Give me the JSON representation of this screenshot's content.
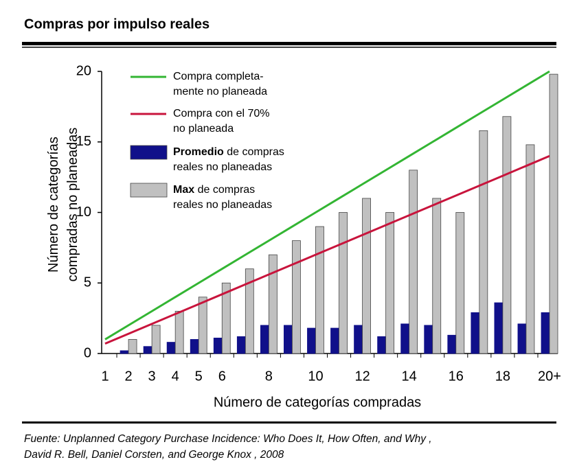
{
  "title": "Compras por impulso reales",
  "source": "Fuente:  Unplanned Category Purchase Incidence:  Who Does It, How Often, and Why ,\nDavid R. Bell, Daniel Corsten, and George Knox , 2008",
  "chart_data": {
    "type": "bar",
    "x_label": "Número de categorías compradas",
    "y_label": "Número de categorías\ncompradas no planeadas",
    "categories": [
      "1",
      "2",
      "3",
      "4",
      "5",
      "6",
      null,
      "8",
      null,
      "10",
      null,
      "12",
      null,
      "14",
      null,
      "16",
      null,
      "18",
      null,
      "20+"
    ],
    "series": [
      {
        "name": "Compra completa-\nmente no planeada",
        "type": "line",
        "color": "#33b533",
        "values": [
          1,
          2,
          3,
          4,
          5,
          6,
          7,
          8,
          9,
          10,
          11,
          12,
          13,
          14,
          15,
          16,
          17,
          18,
          19,
          20
        ]
      },
      {
        "name": "Compra con el 70%\nno planeada",
        "type": "line",
        "color": "#c8143c",
        "values": [
          0.7,
          1.4,
          2.1,
          2.8,
          3.5,
          4.2,
          4.9,
          5.6,
          6.3,
          7,
          7.7,
          8.4,
          9.1,
          9.8,
          10.5,
          11.2,
          11.9,
          12.6,
          13.3,
          14
        ]
      },
      {
        "name": "Promedio de compras\nreales no planeadas",
        "type": "bar",
        "color": "#10108a",
        "values": [
          0,
          0.2,
          0.5,
          0.8,
          1.0,
          1.1,
          1.2,
          2.0,
          2.0,
          1.8,
          1.8,
          2.0,
          1.2,
          2.1,
          2.0,
          1.3,
          2.9,
          3.6,
          2.1,
          2.9
        ]
      },
      {
        "name": "Max de compras\nreales no planeadas",
        "type": "bar",
        "color": "#c0c0c0",
        "values": [
          0,
          1,
          2,
          3,
          4,
          5,
          6,
          7,
          8,
          9,
          10,
          11,
          10,
          13,
          11,
          10,
          15.8,
          16.8,
          14.8,
          19.8
        ]
      }
    ],
    "ylim": [
      0,
      20
    ],
    "yticks": [
      0,
      5,
      10,
      15,
      20
    ]
  }
}
